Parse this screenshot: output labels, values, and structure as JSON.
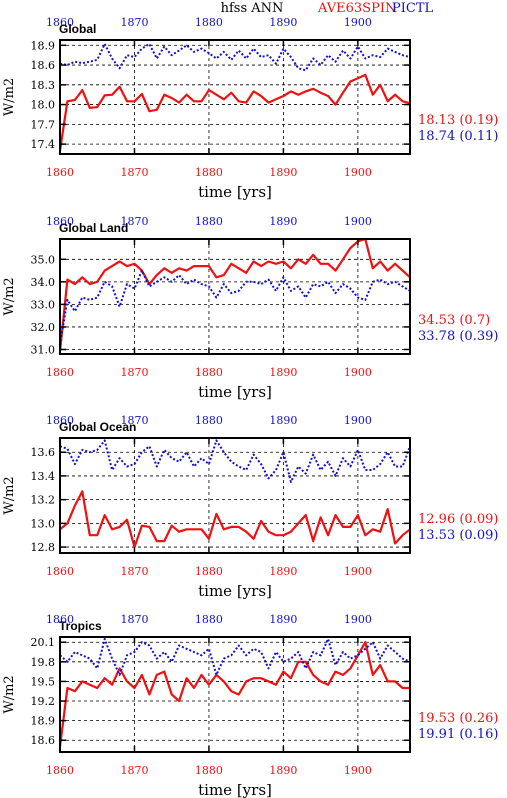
{
  "header": {
    "center_title": "hfss ANN",
    "experiment_label": "AVE63SPIN",
    "control_label": "PICTL"
  },
  "colors": {
    "experiment": "#ee1111",
    "control": "#1111cc",
    "axis": "#000000"
  },
  "chart_data": [
    {
      "type": "line",
      "title": "Global",
      "xlabel": "time [yrs]",
      "ylabel": "W/m2",
      "xlim": [
        1860,
        1907
      ],
      "ylim": [
        17.25,
        18.98
      ],
      "yticks": [
        "17.4",
        "17.7",
        "18.0",
        "18.3",
        "18.6",
        "18.9"
      ],
      "xticks": [
        "1860",
        "1870",
        "1880",
        "1890",
        "1900"
      ],
      "grid": true,
      "stats": [
        {
          "series": "experiment",
          "mean": "18.13",
          "std": "(0.19)"
        },
        {
          "series": "control",
          "mean": "18.74",
          "std": "(0.11)"
        }
      ],
      "series": [
        {
          "name": "AVE63SPIN",
          "key": "experiment",
          "style": "solid",
          "x": [
            1860,
            1861,
            1862,
            1863,
            1864,
            1865,
            1866,
            1867,
            1868,
            1869,
            1870,
            1871,
            1872,
            1873,
            1874,
            1875,
            1876,
            1877,
            1878,
            1879,
            1880,
            1881,
            1882,
            1883,
            1884,
            1885,
            1886,
            1887,
            1888,
            1889,
            1890,
            1891,
            1892,
            1893,
            1894,
            1895,
            1896,
            1897,
            1898,
            1899,
            1900,
            1901,
            1902,
            1903,
            1904,
            1905,
            1906,
            1907
          ],
          "y": [
            17.3,
            18.05,
            18.07,
            18.22,
            17.95,
            17.96,
            18.14,
            18.15,
            18.27,
            18.05,
            18.05,
            18.16,
            17.9,
            17.92,
            18.15,
            18.1,
            18.03,
            18.15,
            18.05,
            18.05,
            18.22,
            18.15,
            18.08,
            18.18,
            18.05,
            18.03,
            18.2,
            18.13,
            18.03,
            18.08,
            18.13,
            18.2,
            18.15,
            18.2,
            18.24,
            18.18,
            18.13,
            18.0,
            18.18,
            18.35,
            18.4,
            18.45,
            18.15,
            18.3,
            18.05,
            18.15,
            18.05,
            18.02
          ]
        },
        {
          "name": "PICTL",
          "key": "control",
          "style": "dotted",
          "x": [
            1860,
            1861,
            1862,
            1863,
            1864,
            1865,
            1866,
            1867,
            1868,
            1869,
            1870,
            1871,
            1872,
            1873,
            1874,
            1875,
            1876,
            1877,
            1878,
            1879,
            1880,
            1881,
            1882,
            1883,
            1884,
            1885,
            1886,
            1887,
            1888,
            1889,
            1890,
            1891,
            1892,
            1893,
            1894,
            1895,
            1896,
            1897,
            1898,
            1899,
            1900,
            1901,
            1902,
            1903,
            1904,
            1905,
            1906,
            1907
          ],
          "y": [
            18.62,
            18.6,
            18.65,
            18.63,
            18.65,
            18.68,
            18.92,
            18.7,
            18.55,
            18.75,
            18.72,
            18.85,
            18.92,
            18.7,
            18.88,
            18.75,
            18.82,
            18.9,
            18.8,
            18.85,
            18.78,
            18.7,
            18.8,
            18.68,
            18.82,
            18.7,
            18.85,
            18.72,
            18.75,
            18.62,
            18.85,
            18.72,
            18.55,
            18.52,
            18.7,
            18.6,
            18.75,
            18.65,
            18.82,
            18.7,
            18.88,
            18.7,
            18.75,
            18.72,
            18.85,
            18.8,
            18.75,
            18.72
          ]
        }
      ]
    },
    {
      "type": "line",
      "title": "Global Land",
      "xlabel": "time [yrs]",
      "ylabel": "W/m2",
      "xlim": [
        1860,
        1907
      ],
      "ylim": [
        30.8,
        35.9
      ],
      "yticks": [
        "31.0",
        "32.0",
        "33.0",
        "34.0",
        "35.0"
      ],
      "xticks": [
        "1860",
        "1870",
        "1880",
        "1890",
        "1900"
      ],
      "grid": true,
      "stats": [
        {
          "series": "experiment",
          "mean": "34.53",
          "std": "(0.7)"
        },
        {
          "series": "control",
          "mean": "33.78",
          "std": "(0.39)"
        }
      ],
      "series": [
        {
          "name": "AVE63SPIN",
          "key": "experiment",
          "style": "solid",
          "x": [
            1860,
            1861,
            1862,
            1863,
            1864,
            1865,
            1866,
            1867,
            1868,
            1869,
            1870,
            1871,
            1872,
            1873,
            1874,
            1875,
            1876,
            1877,
            1878,
            1879,
            1880,
            1881,
            1882,
            1883,
            1884,
            1885,
            1886,
            1887,
            1888,
            1889,
            1890,
            1891,
            1892,
            1893,
            1894,
            1895,
            1896,
            1897,
            1898,
            1899,
            1900,
            1901,
            1902,
            1903,
            1904,
            1905,
            1906,
            1907
          ],
          "y": [
            30.9,
            34.1,
            33.9,
            34.2,
            33.9,
            34.0,
            34.5,
            34.7,
            34.9,
            34.7,
            34.8,
            34.5,
            33.9,
            34.3,
            34.6,
            34.4,
            34.6,
            34.5,
            34.7,
            34.7,
            34.7,
            34.2,
            34.3,
            34.8,
            34.6,
            34.4,
            34.9,
            34.7,
            34.9,
            34.8,
            34.9,
            34.6,
            35.0,
            34.8,
            35.2,
            34.8,
            34.8,
            34.5,
            35.0,
            35.5,
            35.8,
            35.9,
            34.6,
            34.9,
            34.5,
            34.8,
            34.5,
            34.2
          ]
        },
        {
          "name": "PICTL",
          "key": "control",
          "style": "dotted",
          "x": [
            1860,
            1861,
            1862,
            1863,
            1864,
            1865,
            1866,
            1867,
            1868,
            1869,
            1870,
            1871,
            1872,
            1873,
            1874,
            1875,
            1876,
            1877,
            1878,
            1879,
            1880,
            1881,
            1882,
            1883,
            1884,
            1885,
            1886,
            1887,
            1888,
            1889,
            1890,
            1891,
            1892,
            1893,
            1894,
            1895,
            1896,
            1897,
            1898,
            1899,
            1900,
            1901,
            1902,
            1903,
            1904,
            1905,
            1906,
            1907
          ],
          "y": [
            31.2,
            33.2,
            32.7,
            33.3,
            33.2,
            33.3,
            34.0,
            33.8,
            32.9,
            33.9,
            33.7,
            34.5,
            33.8,
            34.0,
            34.2,
            34.0,
            34.3,
            33.9,
            34.1,
            33.9,
            33.8,
            33.3,
            33.9,
            33.5,
            33.6,
            34.0,
            34.0,
            33.9,
            34.1,
            33.6,
            34.2,
            33.6,
            33.8,
            33.3,
            33.9,
            33.8,
            34.0,
            33.5,
            33.9,
            33.7,
            33.3,
            33.2,
            34.0,
            34.1,
            33.9,
            34.0,
            33.8,
            33.6
          ]
        }
      ]
    },
    {
      "type": "line",
      "title": "Global Ocean",
      "xlabel": "time [yrs]",
      "ylabel": "W/m2",
      "xlim": [
        1860,
        1907
      ],
      "ylim": [
        12.75,
        13.72
      ],
      "yticks": [
        "12.8",
        "13.0",
        "13.2",
        "13.4",
        "13.6"
      ],
      "xticks": [
        "1860",
        "1870",
        "1880",
        "1890",
        "1900"
      ],
      "grid": true,
      "stats": [
        {
          "series": "experiment",
          "mean": "12.96",
          "std": "(0.09)"
        },
        {
          "series": "control",
          "mean": "13.53",
          "std": "(0.09)"
        }
      ],
      "series": [
        {
          "name": "AVE63SPIN",
          "key": "experiment",
          "style": "solid",
          "x": [
            1860,
            1861,
            1862,
            1863,
            1864,
            1865,
            1866,
            1867,
            1868,
            1869,
            1870,
            1871,
            1872,
            1873,
            1874,
            1875,
            1876,
            1877,
            1878,
            1879,
            1880,
            1881,
            1882,
            1883,
            1884,
            1885,
            1886,
            1887,
            1888,
            1889,
            1890,
            1891,
            1892,
            1893,
            1894,
            1895,
            1896,
            1897,
            1898,
            1899,
            1900,
            1901,
            1902,
            1903,
            1904,
            1905,
            1906,
            1907
          ],
          "y": [
            12.95,
            13.0,
            13.15,
            13.27,
            12.9,
            12.9,
            13.07,
            12.95,
            12.97,
            13.03,
            12.8,
            12.98,
            12.97,
            12.85,
            12.85,
            12.98,
            12.93,
            12.95,
            12.95,
            12.95,
            12.87,
            13.08,
            12.95,
            12.97,
            12.97,
            12.93,
            12.87,
            13.02,
            12.93,
            12.9,
            12.9,
            12.93,
            13.0,
            13.07,
            12.85,
            13.05,
            12.9,
            13.07,
            12.97,
            12.97,
            13.07,
            12.9,
            12.95,
            12.93,
            13.12,
            12.83,
            12.9,
            12.95
          ]
        },
        {
          "name": "PICTL",
          "key": "control",
          "style": "dotted",
          "x": [
            1860,
            1861,
            1862,
            1863,
            1864,
            1865,
            1866,
            1867,
            1868,
            1869,
            1870,
            1871,
            1872,
            1873,
            1874,
            1875,
            1876,
            1877,
            1878,
            1879,
            1880,
            1881,
            1882,
            1883,
            1884,
            1885,
            1886,
            1887,
            1888,
            1889,
            1890,
            1891,
            1892,
            1893,
            1894,
            1895,
            1896,
            1897,
            1898,
            1899,
            1900,
            1901,
            1902,
            1903,
            1904,
            1905,
            1906,
            1907
          ],
          "y": [
            13.65,
            13.63,
            13.5,
            13.62,
            13.6,
            13.62,
            13.7,
            13.45,
            13.55,
            13.48,
            13.5,
            13.6,
            13.65,
            13.48,
            13.62,
            13.55,
            13.52,
            13.6,
            13.48,
            13.55,
            13.5,
            13.7,
            13.6,
            13.52,
            13.48,
            13.45,
            13.58,
            13.5,
            13.38,
            13.45,
            13.6,
            13.35,
            13.48,
            13.42,
            13.58,
            13.45,
            13.52,
            13.4,
            13.55,
            13.48,
            13.62,
            13.45,
            13.45,
            13.5,
            13.6,
            13.48,
            13.48,
            13.65
          ]
        }
      ]
    },
    {
      "type": "line",
      "title": "Tropics",
      "xlabel": "time [yrs]",
      "ylabel": "W/m2",
      "xlim": [
        1860,
        1907
      ],
      "ylim": [
        18.42,
        20.18
      ],
      "yticks": [
        "18.6",
        "18.9",
        "19.2",
        "19.5",
        "19.8",
        "20.1"
      ],
      "xticks": [
        "1860",
        "1870",
        "1880",
        "1890",
        "1900"
      ],
      "grid": true,
      "stats": [
        {
          "series": "experiment",
          "mean": "19.53",
          "std": "(0.26)"
        },
        {
          "series": "control",
          "mean": "19.91",
          "std": "(0.16)"
        }
      ],
      "series": [
        {
          "name": "AVE63SPIN",
          "key": "experiment",
          "style": "solid",
          "x": [
            1860,
            1861,
            1862,
            1863,
            1864,
            1865,
            1866,
            1867,
            1868,
            1869,
            1870,
            1871,
            1872,
            1873,
            1874,
            1875,
            1876,
            1877,
            1878,
            1879,
            1880,
            1881,
            1882,
            1883,
            1884,
            1885,
            1886,
            1887,
            1888,
            1889,
            1890,
            1891,
            1892,
            1893,
            1894,
            1895,
            1896,
            1897,
            1898,
            1899,
            1900,
            1901,
            1902,
            1903,
            1904,
            1905,
            1906,
            1907
          ],
          "y": [
            18.5,
            19.4,
            19.35,
            19.5,
            19.45,
            19.4,
            19.55,
            19.45,
            19.7,
            19.5,
            19.4,
            19.6,
            19.3,
            19.6,
            19.65,
            19.3,
            19.2,
            19.55,
            19.4,
            19.6,
            19.45,
            19.6,
            19.5,
            19.35,
            19.3,
            19.5,
            19.55,
            19.55,
            19.5,
            19.45,
            19.65,
            19.55,
            19.8,
            19.8,
            19.6,
            19.5,
            19.45,
            19.65,
            19.6,
            19.7,
            19.9,
            20.1,
            19.6,
            19.75,
            19.5,
            19.5,
            19.4,
            19.4
          ]
        },
        {
          "name": "PICTL",
          "key": "control",
          "style": "dotted",
          "x": [
            1860,
            1861,
            1862,
            1863,
            1864,
            1865,
            1866,
            1867,
            1868,
            1869,
            1870,
            1871,
            1872,
            1873,
            1874,
            1875,
            1876,
            1877,
            1878,
            1879,
            1880,
            1881,
            1882,
            1883,
            1884,
            1885,
            1886,
            1887,
            1888,
            1889,
            1890,
            1891,
            1892,
            1893,
            1894,
            1895,
            1896,
            1897,
            1898,
            1899,
            1900,
            1901,
            1902,
            1903,
            1904,
            1905,
            1906,
            1907
          ],
          "y": [
            19.9,
            19.8,
            19.95,
            19.9,
            19.85,
            19.7,
            20.15,
            19.85,
            19.6,
            19.9,
            19.95,
            20.1,
            20.05,
            19.85,
            19.95,
            19.8,
            20.05,
            20.0,
            19.95,
            19.9,
            20.0,
            19.6,
            19.85,
            19.9,
            20.05,
            19.9,
            20.0,
            19.95,
            19.7,
            19.95,
            19.8,
            19.85,
            19.95,
            19.7,
            19.95,
            19.9,
            20.15,
            19.75,
            19.95,
            19.85,
            19.9,
            20.0,
            20.1,
            19.85,
            20.05,
            19.95,
            19.85,
            19.8
          ]
        }
      ]
    }
  ]
}
